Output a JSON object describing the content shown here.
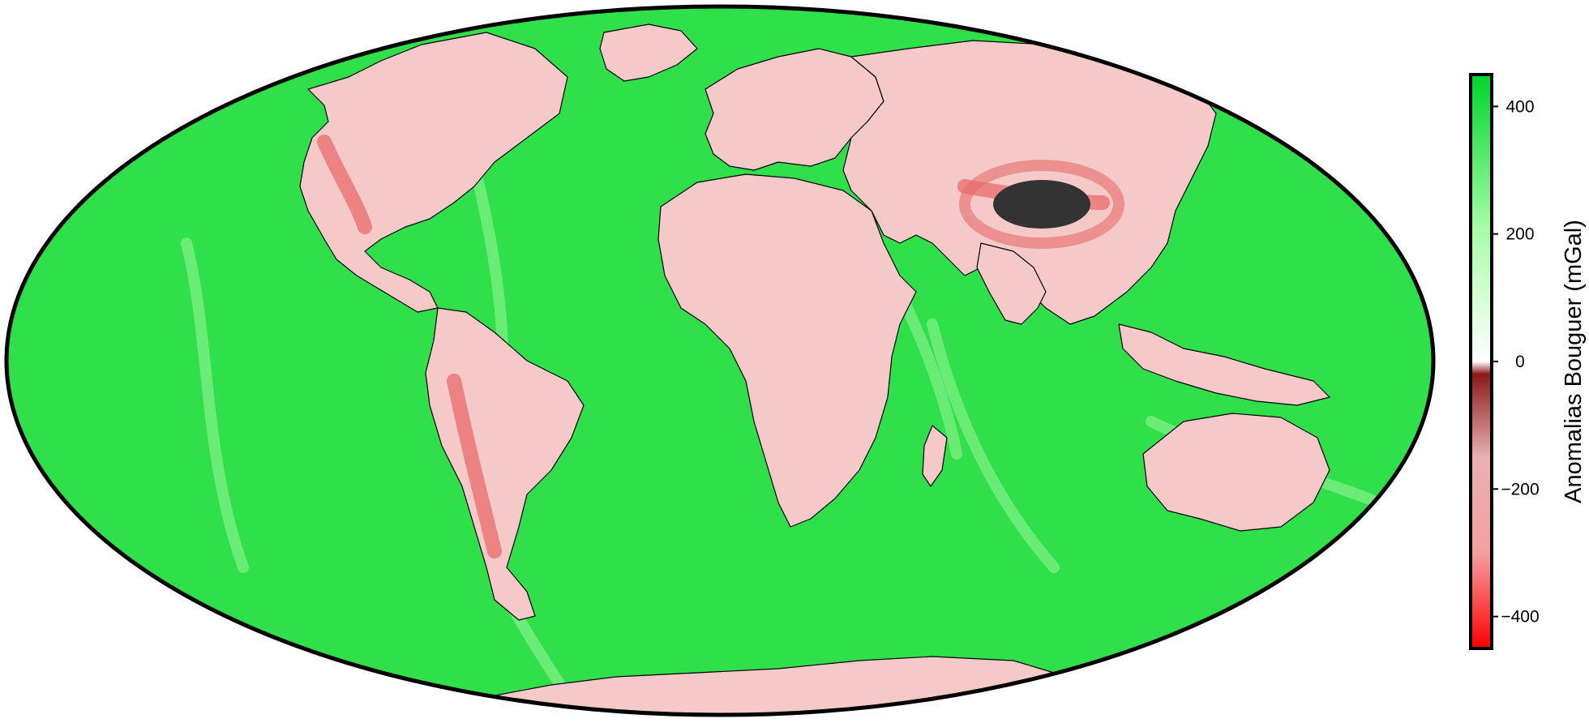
{
  "map": {
    "projection": "Hammer",
    "variable": "Bouguer gravity anomaly",
    "features": {
      "ocean": "ocean-surface",
      "land_areas": [
        "North America",
        "Greenland",
        "South America",
        "Europe",
        "Africa",
        "Asia",
        "Madagascar",
        "Australia",
        "Antarctica"
      ],
      "highlight": "Tibetan plateau (below -400)"
    }
  },
  "colorbar": {
    "title": "Anomalias Bouguer (mGal)",
    "min": -450,
    "max": 450,
    "ticks": [
      {
        "value": 400,
        "label": "400"
      },
      {
        "value": 200,
        "label": "200"
      },
      {
        "value": 0,
        "label": "0"
      },
      {
        "value": -200,
        "label": "−200"
      },
      {
        "value": -400,
        "label": "−400"
      }
    ],
    "stops": [
      {
        "value": -450,
        "color": "#ff0000"
      },
      {
        "value": -300,
        "color": "#f4a0a0"
      },
      {
        "value": -150,
        "color": "#e8b0b0"
      },
      {
        "value": -20,
        "color": "#8b1a1a"
      },
      {
        "value": 0,
        "color": "#ffffff"
      },
      {
        "value": 200,
        "color": "#aaffaa"
      },
      {
        "value": 450,
        "color": "#00d42a"
      }
    ]
  },
  "colors": {
    "ocean": "#2fe04a",
    "ocean_light": "#9af59a",
    "land": "#f6c9c9",
    "land_deep": "#e86a6a",
    "extreme": "#333333",
    "outline": "#000000"
  }
}
